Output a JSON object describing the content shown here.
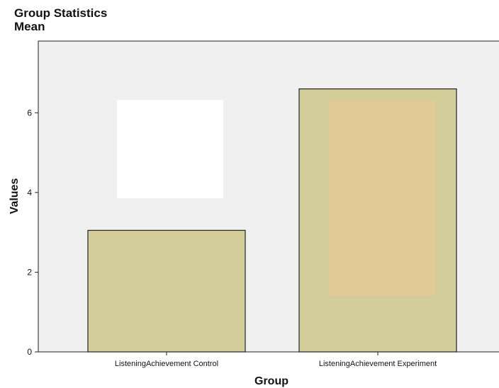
{
  "chart_data": {
    "type": "bar",
    "title": "Group Statistics",
    "subtitle": "Mean",
    "xlabel": "Group",
    "ylabel": "Values",
    "categories": [
      "ListeningAchievement Control",
      "ListeningAchievement Experiment"
    ],
    "values": [
      3.05,
      6.6
    ],
    "ylim": [
      0,
      7.8
    ],
    "yticks": [
      0,
      2,
      4,
      6
    ],
    "grid": false,
    "colors": {
      "plot_background": "#f0f0f0",
      "bar_fill": "#d3ce99",
      "bar_stroke": "#222222",
      "overlay_tan": "#dfca98",
      "overlay_white": "#ffffff"
    }
  }
}
